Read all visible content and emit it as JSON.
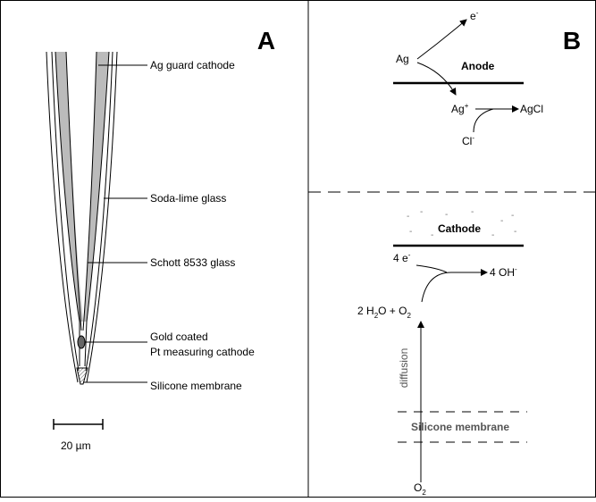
{
  "panel_a": {
    "label": "A",
    "labels": {
      "guard": "Ag guard cathode",
      "soda": "Soda-lime glass",
      "schott": "Schott 8533 glass",
      "gold_1": "Gold coated",
      "gold_2": "Pt measuring cathode",
      "membrane": "Silicone membrane"
    },
    "scale_bar": "20 µm"
  },
  "panel_b": {
    "label": "B",
    "anode": {
      "ag": "Ag",
      "e": [
        "e",
        "-"
      ],
      "title": "Anode",
      "ag_plus": [
        "Ag",
        "+"
      ],
      "agcl": "AgCl",
      "cl": [
        "Cl",
        "-"
      ]
    },
    "cathode": {
      "title": "Cathode",
      "electrons": [
        "4 e",
        "-"
      ],
      "hydroxide": [
        "4 OH",
        "-"
      ],
      "water": [
        "2 H",
        "2",
        "O + O",
        "2"
      ],
      "diffusion": "diffusion",
      "membrane": "Silicone membrane",
      "oxygen": [
        "O",
        "2"
      ]
    }
  }
}
